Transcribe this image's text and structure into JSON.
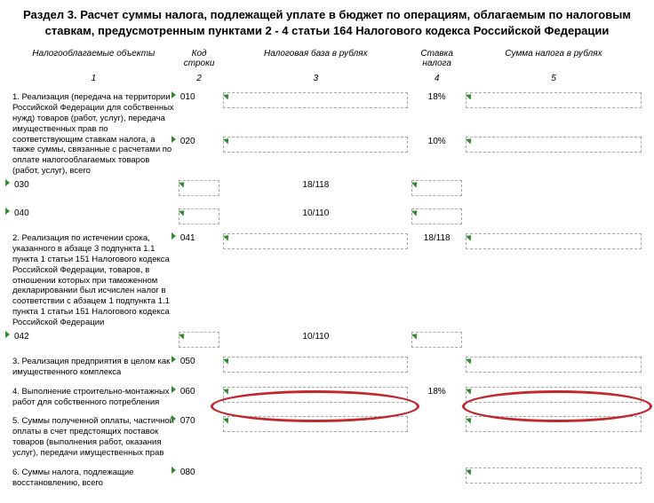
{
  "title": "Раздел 3. Расчет суммы налога, подлежащей уплате в бюджет по операциям, облагаемым по налоговым ставкам, предусмотренным пунктами 2 - 4 статьи 164 Налогового кодекса Российской Федерации",
  "headers": {
    "h1": "Налогооблагаемые объекты",
    "h2": "Код строки",
    "h3": "Налоговая база в рублях",
    "h4": "Ставка налога",
    "h5": "Сумма налога в рублях",
    "n1": "1",
    "n2": "2",
    "n3": "3",
    "n4": "4",
    "n5": "5"
  },
  "rows": [
    {
      "obj": "1. Реализация (передача на территории Российской Федерации для собственных нужд) товаров (работ, услуг), передача имущественных прав по соответствующим ставкам налога, а также суммы, связанные с расчетами по оплате налогооблагаемых товаров (работ, услуг), всего",
      "lines": [
        {
          "code": "010",
          "rate": "18%",
          "base": true,
          "amt": true
        },
        {
          "code": "020",
          "rate": "10%",
          "base": true,
          "amt": true
        },
        {
          "code": "030",
          "rate": "18/118",
          "base": true,
          "amt": true
        },
        {
          "code": "040",
          "rate": "10/110",
          "base": true,
          "amt": true
        }
      ]
    },
    {
      "obj": "2. Реализация по истечении срока, указанного в абзаце 3 подпункта 1.1 пункта 1 статьи 151 Налогового кодекса Российской Федерации, товаров, в отношении которых при таможенном декларировании был исчислен налог в соответствии с абзацем 1 подпункта 1.1 пункта 1 статьи 151 Налогового кодекса Российской Федерации",
      "lines": [
        {
          "code": "041",
          "rate": "18/118",
          "base": true,
          "amt": true
        },
        {
          "code": "042",
          "rate": "10/110",
          "base": true,
          "amt": true
        }
      ]
    },
    {
      "obj": "3. Реализация предприятия в целом как имущественного комплекса",
      "lines": [
        {
          "code": "050",
          "rate": "",
          "base": true,
          "amt": true
        }
      ]
    },
    {
      "obj": "4. Выполнение строительно-монтажных работ для собственного потребления",
      "lines": [
        {
          "code": "060",
          "rate": "18%",
          "base": true,
          "amt": true
        }
      ]
    },
    {
      "obj": "5. Суммы полученной оплаты, частичной оплаты в счет предстоящих поставок товаров (выполнения работ, оказания услуг), передачи имущественных прав",
      "lines": [
        {
          "code": "070",
          "rate": "",
          "base": true,
          "amt": true
        }
      ]
    },
    {
      "obj": "6. Суммы налога, подлежащие восстановлению, всего",
      "lines": [
        {
          "code": "080",
          "rate": "",
          "base": false,
          "amt": true
        }
      ]
    }
  ],
  "ring_color": "#c1272d",
  "marker_color": "#2e8b2e",
  "dash_color": "#aaaaaa"
}
